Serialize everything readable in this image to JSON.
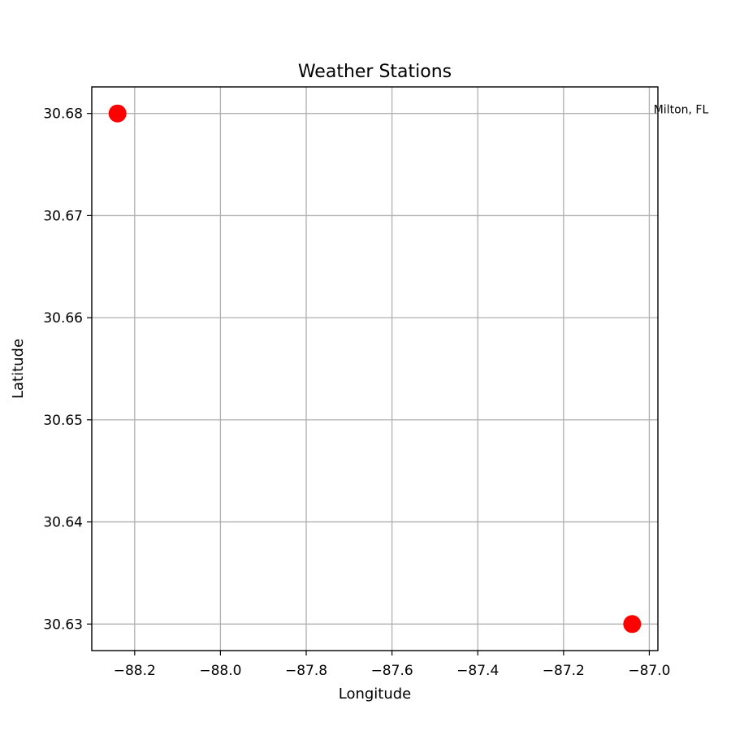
{
  "chart_data": {
    "type": "scatter",
    "title": "Weather Stations",
    "xlabel": "Longitude",
    "ylabel": "Latitude",
    "xlim": [
      -88.3,
      -86.98
    ],
    "ylim": [
      30.6274,
      30.6826
    ],
    "xticks": [
      -88.2,
      -88.0,
      -87.8,
      -87.6,
      -87.4,
      -87.2,
      -87.0
    ],
    "xtick_labels": [
      "−88.2",
      "−88.0",
      "−87.8",
      "−87.6",
      "−87.4",
      "−87.2",
      "−87.0"
    ],
    "yticks": [
      30.63,
      30.64,
      30.65,
      30.66,
      30.67,
      30.68
    ],
    "ytick_labels": [
      "30.63",
      "30.64",
      "30.65",
      "30.66",
      "30.67",
      "30.68"
    ],
    "grid": true,
    "marker_color": "#ff0000",
    "points": [
      {
        "x": -88.24,
        "y": 30.68
      },
      {
        "x": -87.04,
        "y": 30.63
      }
    ],
    "annotations": [
      {
        "text": "Milton, FL",
        "x": -86.99,
        "y": 30.68
      }
    ]
  }
}
